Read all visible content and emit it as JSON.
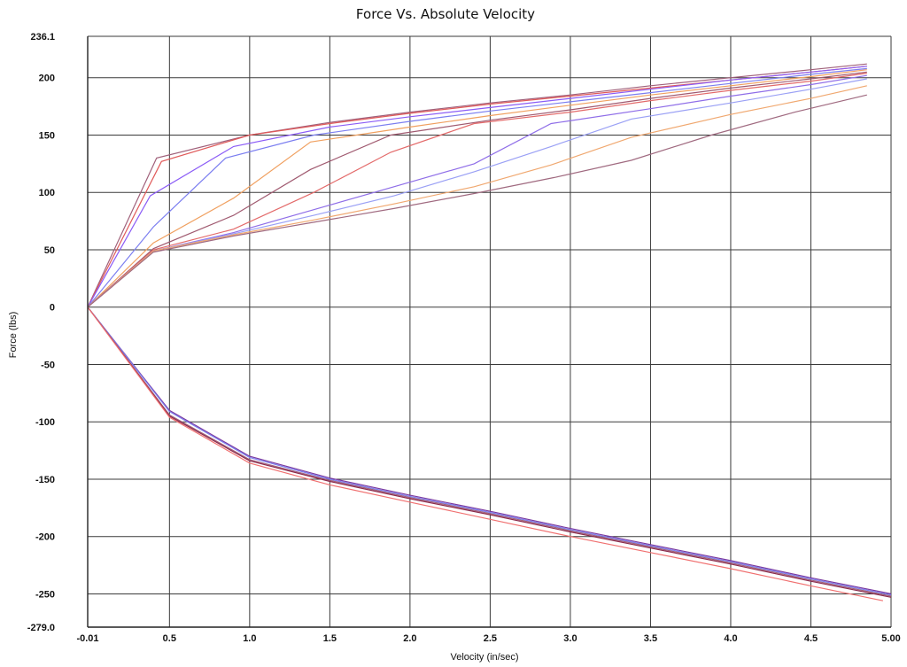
{
  "chart_data": {
    "type": "line",
    "title": "Force Vs. Absolute Velocity",
    "xlabel": "Velocity (in/sec)",
    "ylabel": "Force (lbs)",
    "xlim": [
      -0.01,
      5.0
    ],
    "ylim": [
      -279.0,
      236.1
    ],
    "x_ticks": [
      {
        "value": -0.01,
        "label": "-0.01"
      },
      {
        "value": 0.5,
        "label": "0.5"
      },
      {
        "value": 1.0,
        "label": "1.0"
      },
      {
        "value": 1.5,
        "label": "1.5"
      },
      {
        "value": 2.0,
        "label": "2.0"
      },
      {
        "value": 2.5,
        "label": "2.5"
      },
      {
        "value": 3.0,
        "label": "3.0"
      },
      {
        "value": 3.5,
        "label": "3.5"
      },
      {
        "value": 4.0,
        "label": "4.0"
      },
      {
        "value": 4.5,
        "label": "4.5"
      },
      {
        "value": 5.0,
        "label": "5.00"
      }
    ],
    "y_ticks": [
      {
        "value": 236.1,
        "label": "236.1"
      },
      {
        "value": 200,
        "label": "200"
      },
      {
        "value": 150,
        "label": "150"
      },
      {
        "value": 100,
        "label": "100"
      },
      {
        "value": 50,
        "label": "50"
      },
      {
        "value": 0,
        "label": "0"
      },
      {
        "value": -50,
        "label": "-50"
      },
      {
        "value": -100,
        "label": "-100"
      },
      {
        "value": -150,
        "label": "-150"
      },
      {
        "value": -200,
        "label": "-200"
      },
      {
        "value": -250,
        "label": "-250"
      },
      {
        "value": -279.0,
        "label": "-279.0"
      }
    ],
    "grid": true,
    "legend": "none",
    "series": [
      {
        "color": "#a0607a",
        "points": [
          [
            -0.01,
            0
          ],
          [
            0.42,
            130
          ],
          [
            1.0,
            150
          ],
          [
            1.5,
            161
          ],
          [
            2.0,
            170
          ],
          [
            2.5,
            178
          ],
          [
            3.0,
            185
          ],
          [
            3.5,
            193
          ],
          [
            4.0,
            200
          ],
          [
            4.5,
            207
          ],
          [
            4.85,
            212
          ]
        ]
      },
      {
        "color": "#e05a5a",
        "points": [
          [
            -0.01,
            0
          ],
          [
            0.45,
            127
          ],
          [
            1.0,
            150
          ],
          [
            1.5,
            160
          ],
          [
            2.0,
            169
          ],
          [
            2.5,
            177
          ],
          [
            3.0,
            184
          ],
          [
            3.5,
            191
          ],
          [
            4.0,
            198
          ],
          [
            4.5,
            205
          ],
          [
            4.85,
            210
          ]
        ]
      },
      {
        "color": "#8b5cf6",
        "points": [
          [
            -0.01,
            0
          ],
          [
            0.38,
            97
          ],
          [
            0.9,
            140
          ],
          [
            1.5,
            157
          ],
          [
            2.0,
            166
          ],
          [
            2.5,
            174
          ],
          [
            3.0,
            182
          ],
          [
            3.5,
            190
          ],
          [
            4.0,
            198
          ],
          [
            4.5,
            205
          ],
          [
            4.85,
            210
          ]
        ]
      },
      {
        "color": "#7b7ef0",
        "points": [
          [
            -0.01,
            0
          ],
          [
            0.4,
            70
          ],
          [
            0.85,
            130
          ],
          [
            1.4,
            150
          ],
          [
            2.0,
            162
          ],
          [
            2.5,
            171
          ],
          [
            3.0,
            179
          ],
          [
            3.5,
            187
          ],
          [
            4.0,
            195
          ],
          [
            4.5,
            203
          ],
          [
            4.85,
            208
          ]
        ]
      },
      {
        "color": "#f0a060",
        "points": [
          [
            -0.01,
            0
          ],
          [
            0.4,
            56
          ],
          [
            0.9,
            95
          ],
          [
            1.38,
            144
          ],
          [
            2.0,
            157
          ],
          [
            2.5,
            167
          ],
          [
            3.0,
            176
          ],
          [
            3.5,
            185
          ],
          [
            4.0,
            193
          ],
          [
            4.5,
            201
          ],
          [
            4.85,
            207
          ]
        ]
      },
      {
        "color": "#a05a70",
        "points": [
          [
            -0.01,
            0
          ],
          [
            0.4,
            51
          ],
          [
            0.9,
            80
          ],
          [
            1.38,
            120
          ],
          [
            1.88,
            150
          ],
          [
            2.5,
            163
          ],
          [
            3.0,
            172
          ],
          [
            3.5,
            182
          ],
          [
            4.0,
            191
          ],
          [
            4.5,
            199
          ],
          [
            4.85,
            205
          ]
        ]
      },
      {
        "color": "#e36a6a",
        "points": [
          [
            -0.01,
            0
          ],
          [
            0.4,
            50
          ],
          [
            0.9,
            68
          ],
          [
            1.4,
            100
          ],
          [
            1.88,
            135
          ],
          [
            2.4,
            160
          ],
          [
            3.0,
            170
          ],
          [
            3.5,
            180
          ],
          [
            4.0,
            189
          ],
          [
            4.5,
            197
          ],
          [
            4.85,
            204
          ]
        ]
      },
      {
        "color": "#8f6ee8",
        "points": [
          [
            -0.01,
            0
          ],
          [
            0.4,
            49
          ],
          [
            0.9,
            65
          ],
          [
            1.4,
            85
          ],
          [
            1.9,
            105
          ],
          [
            2.4,
            125
          ],
          [
            2.88,
            160
          ],
          [
            3.5,
            173
          ],
          [
            4.0,
            184
          ],
          [
            4.5,
            194
          ],
          [
            4.85,
            202
          ]
        ]
      },
      {
        "color": "#9aa0f5",
        "points": [
          [
            -0.01,
            0
          ],
          [
            0.4,
            49
          ],
          [
            0.9,
            64
          ],
          [
            1.4,
            80
          ],
          [
            1.9,
            97
          ],
          [
            2.4,
            118
          ],
          [
            2.88,
            140
          ],
          [
            3.38,
            164
          ],
          [
            4.0,
            178
          ],
          [
            4.5,
            190
          ],
          [
            4.85,
            199
          ]
        ]
      },
      {
        "color": "#f0a870",
        "points": [
          [
            -0.01,
            0
          ],
          [
            0.4,
            49
          ],
          [
            0.9,
            63
          ],
          [
            1.4,
            76
          ],
          [
            1.9,
            90
          ],
          [
            2.4,
            105
          ],
          [
            2.88,
            124
          ],
          [
            3.38,
            148
          ],
          [
            4.0,
            168
          ],
          [
            4.5,
            182
          ],
          [
            4.85,
            193
          ]
        ]
      },
      {
        "color": "#a06a80",
        "points": [
          [
            -0.01,
            0
          ],
          [
            0.4,
            48
          ],
          [
            0.9,
            62
          ],
          [
            1.4,
            74
          ],
          [
            1.9,
            86
          ],
          [
            2.4,
            99
          ],
          [
            2.9,
            113
          ],
          [
            3.38,
            128
          ],
          [
            3.88,
            150
          ],
          [
            4.4,
            170
          ],
          [
            4.85,
            185
          ]
        ]
      },
      {
        "color": "#7a3aa0",
        "points": [
          [
            -0.01,
            0
          ],
          [
            0.5,
            -90
          ],
          [
            1.0,
            -130
          ],
          [
            1.5,
            -149
          ],
          [
            2.0,
            -164
          ],
          [
            2.5,
            -178
          ],
          [
            3.0,
            -193
          ],
          [
            3.5,
            -207
          ],
          [
            4.0,
            -221
          ],
          [
            4.5,
            -236
          ],
          [
            5.0,
            -250
          ]
        ]
      },
      {
        "color": "#7b7ef0",
        "points": [
          [
            -0.01,
            0
          ],
          [
            0.5,
            -91
          ],
          [
            1.0,
            -131
          ],
          [
            1.5,
            -150
          ],
          [
            2.0,
            -165
          ],
          [
            2.5,
            -179
          ],
          [
            3.0,
            -194
          ],
          [
            3.5,
            -208
          ],
          [
            4.0,
            -222
          ],
          [
            4.5,
            -237
          ],
          [
            5.0,
            -251
          ]
        ]
      },
      {
        "color": "#a0607a",
        "points": [
          [
            -0.01,
            0
          ],
          [
            0.5,
            -94
          ],
          [
            1.0,
            -133
          ],
          [
            1.5,
            -151
          ],
          [
            2.0,
            -166
          ],
          [
            2.5,
            -180
          ],
          [
            3.0,
            -195
          ],
          [
            3.5,
            -209
          ],
          [
            4.0,
            -223
          ],
          [
            4.5,
            -238
          ],
          [
            5.0,
            -252
          ]
        ]
      },
      {
        "color": "#8b2a4a",
        "points": [
          [
            -0.01,
            0
          ],
          [
            0.5,
            -95
          ],
          [
            1.0,
            -134
          ],
          [
            1.5,
            -152
          ],
          [
            2.0,
            -167
          ],
          [
            2.5,
            -181
          ],
          [
            3.0,
            -196
          ],
          [
            3.5,
            -210
          ],
          [
            4.0,
            -224
          ],
          [
            4.5,
            -239
          ],
          [
            5.0,
            -253
          ]
        ]
      },
      {
        "color": "#f07070",
        "points": [
          [
            -0.01,
            0
          ],
          [
            0.5,
            -96
          ],
          [
            1.0,
            -136
          ],
          [
            1.5,
            -155
          ],
          [
            2.0,
            -170
          ],
          [
            2.5,
            -185
          ],
          [
            3.0,
            -200
          ],
          [
            3.5,
            -214
          ],
          [
            4.0,
            -228
          ],
          [
            4.5,
            -243
          ],
          [
            4.95,
            -256
          ]
        ]
      }
    ]
  }
}
